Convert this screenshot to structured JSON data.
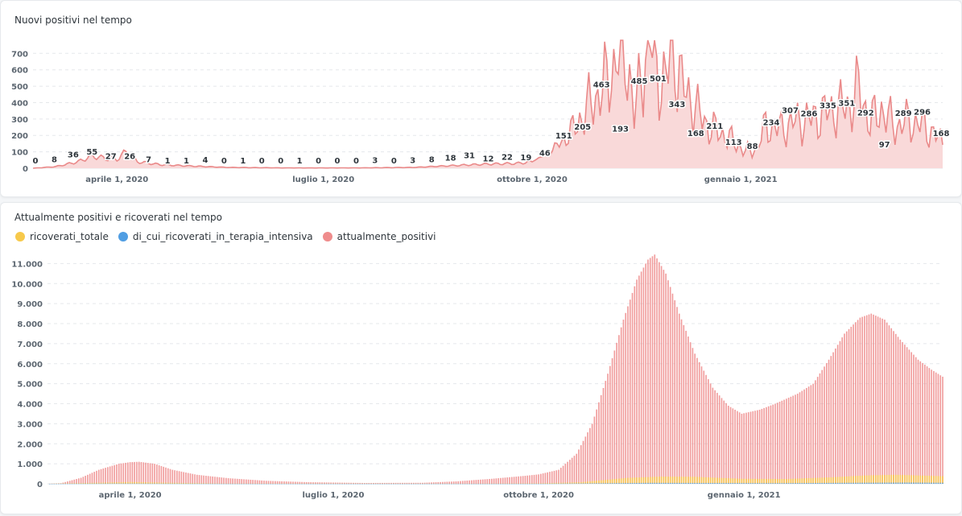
{
  "colors": {
    "positivi_line": "#ea8a8a",
    "positivi_fill": "#f9d9d9",
    "ricoverati_totale": "#f7c94b",
    "terapia_intensiva": "#509ee3",
    "attualmente_positivi": "#ef8c8c",
    "grid": "#e5e8eb"
  },
  "chart_data": [
    {
      "type": "area",
      "title": "Nuovi positivi nel tempo",
      "xlabel": "",
      "ylabel": "",
      "x_range": [
        "2020-02-24",
        "2021-03-31"
      ],
      "ylim": [
        0,
        780
      ],
      "yticks": [
        0,
        100,
        200,
        300,
        400,
        500,
        600,
        700
      ],
      "ytick_labels": [
        "0",
        "100",
        "200",
        "300",
        "400",
        "500",
        "600",
        "700"
      ],
      "xticks": [
        {
          "date": "2020-04-01",
          "label": "aprile 1, 2020"
        },
        {
          "date": "2020-07-01",
          "label": "luglio 1, 2020"
        },
        {
          "date": "2020-10-01",
          "label": "ottobre 1, 2020"
        },
        {
          "date": "2021-01-01",
          "label": "gennaio 1, 2021"
        }
      ],
      "grid": true,
      "series": [
        {
          "name": "nuovi_positivi",
          "keypoints": [
            [
              "2020-02-24",
              0
            ],
            [
              "2020-03-05",
              10
            ],
            [
              "2020-03-15",
              40
            ],
            [
              "2020-03-21",
              75
            ],
            [
              "2020-03-27",
              60
            ],
            [
              "2020-04-01",
              55
            ],
            [
              "2020-04-05",
              100
            ],
            [
              "2020-04-10",
              40
            ],
            [
              "2020-04-20",
              22
            ],
            [
              "2020-05-01",
              15
            ],
            [
              "2020-05-20",
              5
            ],
            [
              "2020-06-15",
              2
            ],
            [
              "2020-07-15",
              2
            ],
            [
              "2020-08-10",
              5
            ],
            [
              "2020-08-25",
              15
            ],
            [
              "2020-09-10",
              25
            ],
            [
              "2020-09-25",
              30
            ],
            [
              "2020-10-01",
              40
            ],
            [
              "2020-10-08",
              90
            ],
            [
              "2020-10-14",
              160
            ],
            [
              "2020-10-20",
              250
            ],
            [
              "2020-10-26",
              380
            ],
            [
              "2020-11-01",
              480
            ],
            [
              "2020-11-06",
              620
            ],
            [
              "2020-11-09",
              760
            ],
            [
              "2020-11-12",
              700
            ],
            [
              "2020-11-15",
              300
            ],
            [
              "2020-11-19",
              660
            ],
            [
              "2020-11-22",
              780
            ],
            [
              "2020-11-25",
              600
            ],
            [
              "2020-11-29",
              520
            ],
            [
              "2020-12-02",
              780
            ],
            [
              "2020-12-06",
              500
            ],
            [
              "2020-12-10",
              420
            ],
            [
              "2020-12-14",
              320
            ],
            [
              "2020-12-18",
              250
            ],
            [
              "2020-12-24",
              210
            ],
            [
              "2020-12-30",
              150
            ],
            [
              "2021-01-03",
              100
            ],
            [
              "2021-01-08",
              120
            ],
            [
              "2021-01-12",
              260
            ],
            [
              "2021-01-18",
              240
            ],
            [
              "2021-01-24",
              280
            ],
            [
              "2021-02-01",
              300
            ],
            [
              "2021-02-06",
              330
            ],
            [
              "2021-02-12",
              360
            ],
            [
              "2021-02-18",
              380
            ],
            [
              "2021-02-22",
              480
            ],
            [
              "2021-02-27",
              280
            ],
            [
              "2021-03-04",
              360
            ],
            [
              "2021-03-10",
              250
            ],
            [
              "2021-03-16",
              290
            ],
            [
              "2021-03-22",
              260
            ],
            [
              "2021-03-26",
              220
            ],
            [
              "2021-03-31",
              160
            ]
          ]
        }
      ],
      "data_labels": [
        {
          "date": "2020-02-24",
          "value": 0,
          "label": "0"
        },
        {
          "date": "2020-03-06",
          "value": 8,
          "label": "8"
        },
        {
          "date": "2020-03-17",
          "value": 36,
          "label": "36"
        },
        {
          "date": "2020-03-28",
          "value": 55,
          "label": "55"
        },
        {
          "date": "2020-04-08",
          "value": 27,
          "label": "27"
        },
        {
          "date": "2020-04-19",
          "value": 26,
          "label": "26"
        },
        {
          "date": "2020-04-30",
          "value": 7,
          "label": "7"
        },
        {
          "date": "2020-05-11",
          "value": 1,
          "label": "1"
        },
        {
          "date": "2020-05-22",
          "value": 1,
          "label": "1"
        },
        {
          "date": "2020-06-02",
          "value": 4,
          "label": "4"
        },
        {
          "date": "2020-06-13",
          "value": 0,
          "label": "0"
        },
        {
          "date": "2020-06-24",
          "value": 1,
          "label": "1"
        },
        {
          "date": "2020-07-05",
          "value": 0,
          "label": "0"
        },
        {
          "date": "2020-07-16",
          "value": 0,
          "label": "0"
        },
        {
          "date": "2020-07-27",
          "value": 1,
          "label": "1"
        },
        {
          "date": "2020-08-07",
          "value": 0,
          "label": "0"
        },
        {
          "date": "2020-08-18",
          "value": 0,
          "label": "0"
        },
        {
          "date": "2020-08-29",
          "value": 0,
          "label": "0"
        },
        {
          "date": "2020-09-09",
          "value": 3,
          "label": "3"
        },
        {
          "date": "2020-09-20",
          "value": 0,
          "label": "0"
        },
        {
          "date": "2020-10-01",
          "value": 3,
          "label": "3"
        },
        {
          "date": "2020-10-12",
          "value": 8,
          "label": "8"
        },
        {
          "date": "2020-10-23",
          "value": 18,
          "label": "18"
        },
        {
          "date": "2020-11-03",
          "value": 31,
          "label": "31"
        },
        {
          "date": "2020-11-14",
          "value": 12,
          "label": "12"
        },
        {
          "date": "2020-11-25",
          "value": 22,
          "label": "22"
        },
        {
          "date": "2020-12-06",
          "value": 19,
          "label": "19"
        },
        {
          "date": "2020-12-17",
          "value": 46,
          "label": "46"
        },
        {
          "date": "2020-12-28",
          "value": 151,
          "label": "151"
        },
        {
          "date": "2021-01-08",
          "value": 205,
          "label": "205"
        },
        {
          "date": "2021-01-19",
          "value": 463,
          "label": "463"
        },
        {
          "date": "2021-01-30",
          "value": 193,
          "label": "193"
        },
        {
          "date": "2021-02-10",
          "value": 485,
          "label": "485"
        },
        {
          "date": "2021-02-21",
          "value": 501,
          "label": "501"
        },
        {
          "date": "2021-03-04",
          "value": 343,
          "label": "343"
        },
        {
          "date": "2021-03-15",
          "value": 168,
          "label": "168"
        },
        {
          "date": "2021-03-26",
          "value": 211,
          "label": "211"
        },
        {
          "date": "2021-04-06",
          "value": 113,
          "label": "113"
        },
        {
          "date": "2021-04-17",
          "value": 88,
          "label": "88"
        },
        {
          "date": "2021-04-28",
          "value": 234,
          "label": "234"
        },
        {
          "date": "2021-05-09",
          "value": 307,
          "label": "307"
        },
        {
          "date": "2021-05-20",
          "value": 286,
          "label": "286"
        },
        {
          "date": "2021-05-31",
          "value": 335,
          "label": "335"
        },
        {
          "date": "2021-06-11",
          "value": 351,
          "label": "351"
        },
        {
          "date": "2021-06-22",
          "value": 292,
          "label": "292"
        },
        {
          "date": "2021-07-03",
          "value": 97,
          "label": "97"
        },
        {
          "date": "2021-07-14",
          "value": 289,
          "label": "289"
        },
        {
          "date": "2021-07-25",
          "value": 296,
          "label": "296"
        },
        {
          "date": "2021-08-05",
          "value": 168,
          "label": "168"
        }
      ]
    },
    {
      "type": "bar",
      "title": "Attualmente positivi e ricoverati nel tempo",
      "xlabel": "",
      "ylabel": "",
      "x_range": [
        "2020-02-24",
        "2021-03-31"
      ],
      "ylim": [
        0,
        11500
      ],
      "yticks": [
        0,
        1000,
        2000,
        3000,
        4000,
        5000,
        6000,
        7000,
        8000,
        9000,
        10000,
        11000
      ],
      "ytick_labels": [
        "0",
        "1.000",
        "2.000",
        "3.000",
        "4.000",
        "5.000",
        "6.000",
        "7.000",
        "8.000",
        "9.000",
        "10.000",
        "11.000"
      ],
      "xticks": [
        {
          "date": "2020-04-01",
          "label": "aprile 1, 2020"
        },
        {
          "date": "2020-07-01",
          "label": "luglio 1, 2020"
        },
        {
          "date": "2020-10-01",
          "label": "ottobre 1, 2020"
        },
        {
          "date": "2021-01-01",
          "label": "gennaio 1, 2021"
        }
      ],
      "grid": true,
      "legend_position": "top-left",
      "series": [
        {
          "name": "ricoverati_totale",
          "keypoints": [
            [
              "2020-02-24",
              0
            ],
            [
              "2020-03-20",
              60
            ],
            [
              "2020-04-01",
              90
            ],
            [
              "2020-04-20",
              50
            ],
            [
              "2020-05-15",
              10
            ],
            [
              "2020-09-01",
              5
            ],
            [
              "2020-10-01",
              20
            ],
            [
              "2020-10-20",
              80
            ],
            [
              "2020-11-10",
              300
            ],
            [
              "2020-11-25",
              360
            ],
            [
              "2020-12-10",
              350
            ],
            [
              "2020-12-31",
              250
            ],
            [
              "2021-01-20",
              240
            ],
            [
              "2021-02-10",
              330
            ],
            [
              "2021-02-25",
              420
            ],
            [
              "2021-03-10",
              450
            ],
            [
              "2021-03-31",
              380
            ]
          ]
        },
        {
          "name": "di_cui_ricoverati_in_terapia_intensiva",
          "keypoints": [
            [
              "2020-02-24",
              0
            ],
            [
              "2020-03-25",
              15
            ],
            [
              "2020-04-15",
              10
            ],
            [
              "2020-06-01",
              1
            ],
            [
              "2020-10-01",
              3
            ],
            [
              "2020-11-20",
              45
            ],
            [
              "2020-12-15",
              40
            ],
            [
              "2021-01-15",
              30
            ],
            [
              "2021-02-20",
              50
            ],
            [
              "2021-03-15",
              60
            ],
            [
              "2021-03-31",
              50
            ]
          ]
        },
        {
          "name": "attualmente_positivi",
          "keypoints": [
            [
              "2020-02-24",
              0
            ],
            [
              "2020-03-01",
              30
            ],
            [
              "2020-03-10",
              300
            ],
            [
              "2020-03-18",
              700
            ],
            [
              "2020-03-27",
              1000
            ],
            [
              "2020-04-01",
              1080
            ],
            [
              "2020-04-05",
              1100
            ],
            [
              "2020-04-12",
              1000
            ],
            [
              "2020-04-20",
              700
            ],
            [
              "2020-05-01",
              450
            ],
            [
              "2020-05-15",
              280
            ],
            [
              "2020-06-01",
              150
            ],
            [
              "2020-06-20",
              80
            ],
            [
              "2020-07-15",
              40
            ],
            [
              "2020-08-10",
              50
            ],
            [
              "2020-08-25",
              120
            ],
            [
              "2020-09-10",
              250
            ],
            [
              "2020-09-25",
              400
            ],
            [
              "2020-10-01",
              470
            ],
            [
              "2020-10-10",
              700
            ],
            [
              "2020-10-18",
              1500
            ],
            [
              "2020-10-25",
              3000
            ],
            [
              "2020-11-01",
              5500
            ],
            [
              "2020-11-08",
              8200
            ],
            [
              "2020-11-14",
              10200
            ],
            [
              "2020-11-19",
              11200
            ],
            [
              "2020-11-22",
              11450
            ],
            [
              "2020-11-27",
              10500
            ],
            [
              "2020-12-03",
              8500
            ],
            [
              "2020-12-10",
              6500
            ],
            [
              "2020-12-18",
              4800
            ],
            [
              "2020-12-25",
              3900
            ],
            [
              "2020-12-31",
              3500
            ],
            [
              "2021-01-08",
              3700
            ],
            [
              "2021-01-15",
              4000
            ],
            [
              "2021-01-25",
              4500
            ],
            [
              "2021-02-01",
              5000
            ],
            [
              "2021-02-08",
              6200
            ],
            [
              "2021-02-15",
              7500
            ],
            [
              "2021-02-22",
              8300
            ],
            [
              "2021-02-27",
              8500
            ],
            [
              "2021-03-05",
              8200
            ],
            [
              "2021-03-12",
              7200
            ],
            [
              "2021-03-20",
              6200
            ],
            [
              "2021-03-26",
              5700
            ],
            [
              "2021-03-31",
              5350
            ]
          ]
        }
      ]
    }
  ]
}
